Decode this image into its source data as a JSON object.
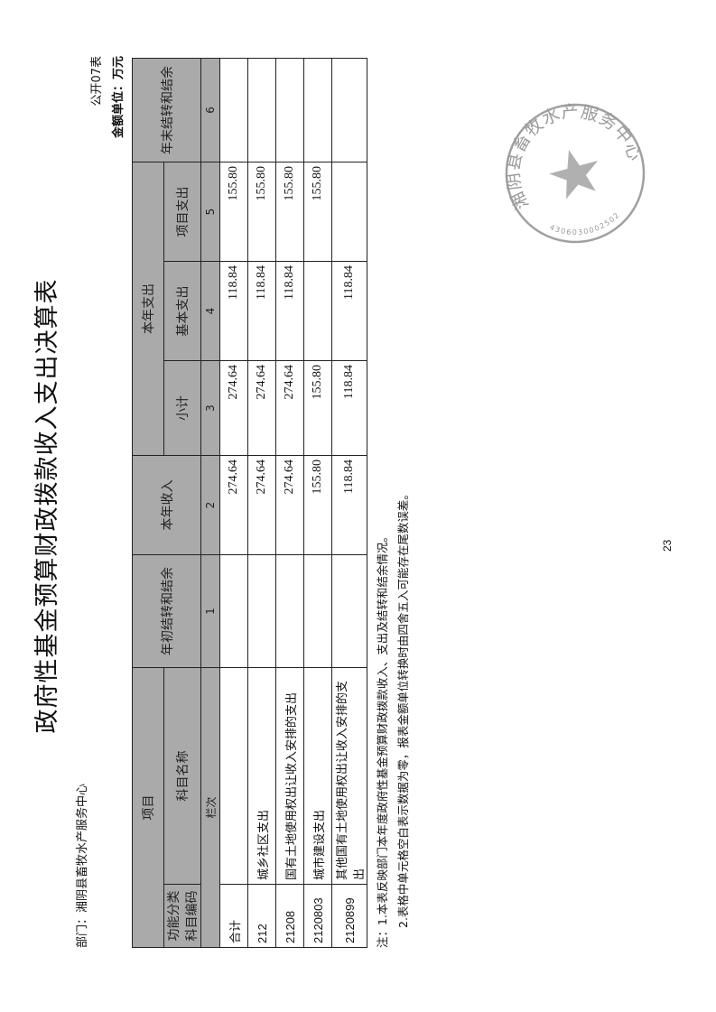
{
  "title": "政府性基金预算财政拨款收入支出决算表",
  "department": "部门：湘阴县畜牧水产服务中心",
  "form_no": "公开07表",
  "unit": "金额单位：万元",
  "headers": {
    "project": "项目",
    "code": "功能分类科目编码",
    "name": "科目名称",
    "col_label": "栏次",
    "opening": "年初结转和结余",
    "income": "本年收入",
    "expense": "本年支出",
    "subtotal": "小计",
    "basic": "基本支出",
    "program": "项目支出",
    "closing": "年末结转和结余",
    "nums": [
      "1",
      "2",
      "3",
      "4",
      "5",
      "6"
    ]
  },
  "rows": [
    {
      "code": "合计",
      "name": "",
      "c1": "",
      "c2": "274.64",
      "c3": "274.64",
      "c4": "118.84",
      "c5": "155.80",
      "c6": ""
    },
    {
      "code": "212",
      "name": "城乡社区支出",
      "c1": "",
      "c2": "274.64",
      "c3": "274.64",
      "c4": "118.84",
      "c5": "155.80",
      "c6": ""
    },
    {
      "code": "21208",
      "name": "国有土地使用权出让收入安排的支出",
      "c1": "",
      "c2": "274.64",
      "c3": "274.64",
      "c4": "118.84",
      "c5": "155.80",
      "c6": ""
    },
    {
      "code": "2120803",
      "name": "城市建设支出",
      "c1": "",
      "c2": "155.80",
      "c3": "155.80",
      "c4": "",
      "c5": "155.80",
      "c6": ""
    },
    {
      "code": "2120899",
      "name": "其他国有土地使用权出让收入安排的支出",
      "c1": "",
      "c2": "118.84",
      "c3": "118.84",
      "c4": "118.84",
      "c5": "",
      "c6": ""
    }
  ],
  "notes": [
    "注：1.本表反映部门本年度政府性基金预算财政拨款收入、支出及结转和结余情况。",
    "2.表格中单元格空白表示数据为零，报表金额单位转换时由四舍五入可能存在尾数误差。"
  ],
  "page_number": "23",
  "stamp": {
    "name": "湘阴县畜牧水产服务中心",
    "number": "4306030002502",
    "color": "#9a9a9a"
  }
}
